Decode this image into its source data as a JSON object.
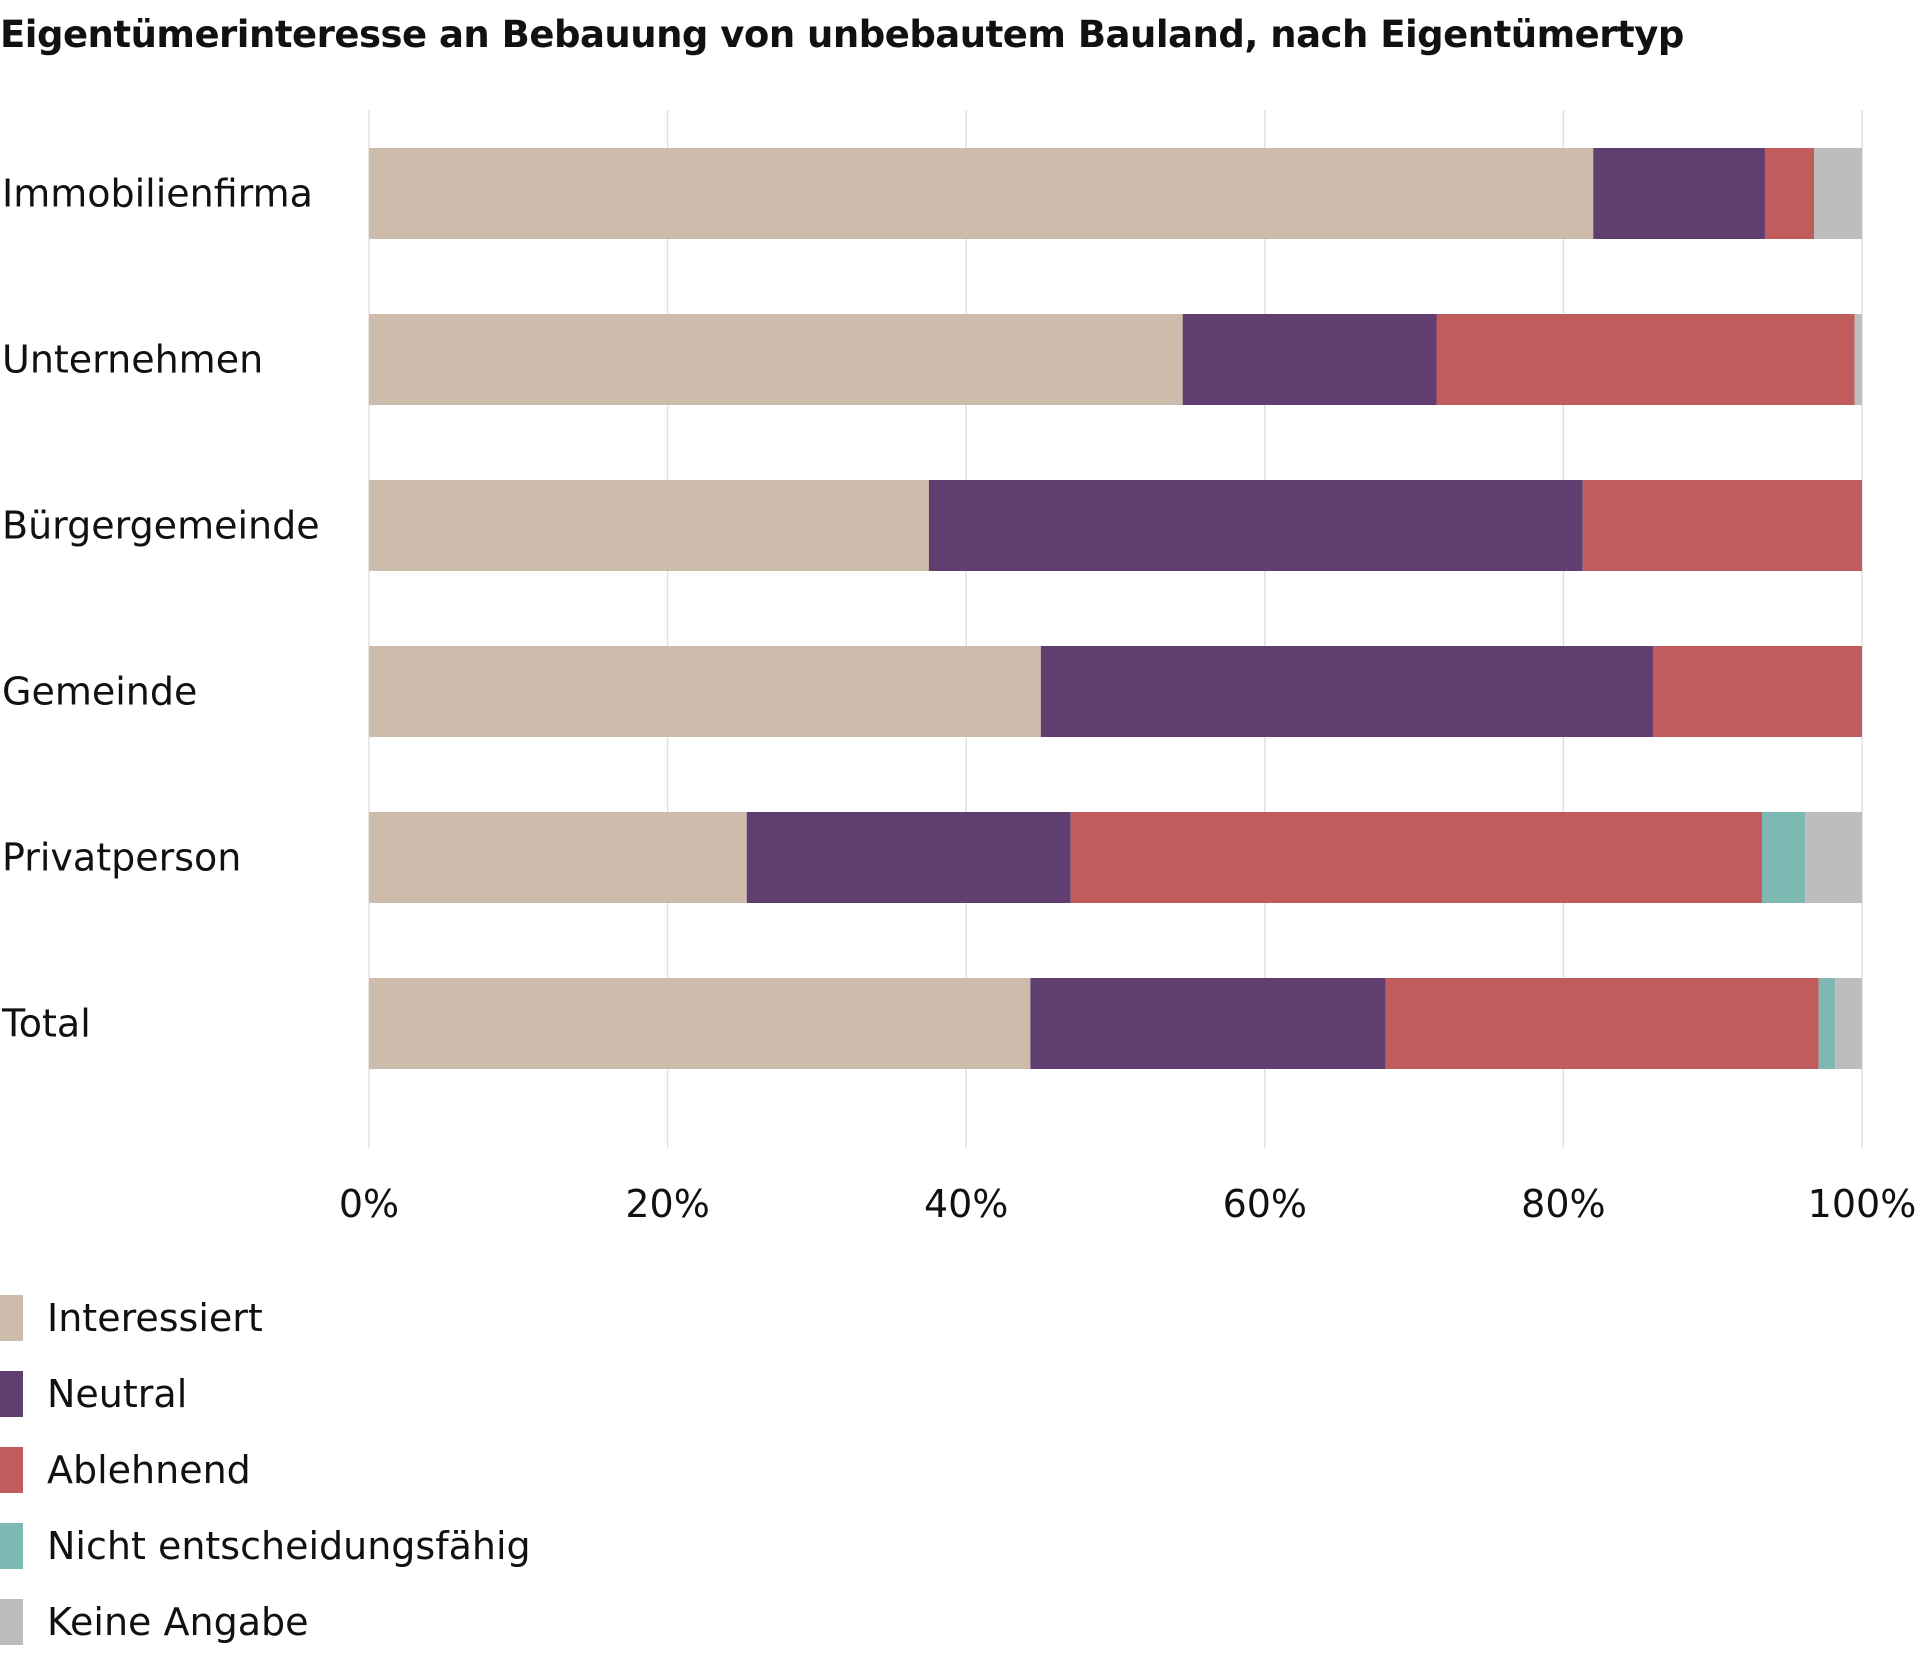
{
  "chart_data": {
    "type": "bar",
    "orientation": "horizontal",
    "stacked": true,
    "title": "Eigentümerinteresse an Bebauung von unbebautem Bauland, nach Eigentümertyp",
    "xlabel": "",
    "ylabel": "",
    "xlim": [
      0,
      100
    ],
    "x_ticks": [
      "0%",
      "20%",
      "40%",
      "60%",
      "80%",
      "100%"
    ],
    "grid": true,
    "legend_position": "bottom-left",
    "categories": [
      "Immobilienfirma",
      "Unternehmen",
      "Bürgergemeinde",
      "Gemeinde",
      "Privatperson",
      "Total"
    ],
    "series": [
      {
        "name": "Interessiert",
        "color": "#cdbcab",
        "values": [
          82,
          54.5,
          37.5,
          45,
          25.3,
          44.3
        ]
      },
      {
        "name": "Neutral",
        "color": "#603f70",
        "values": [
          11.5,
          17,
          43.8,
          41,
          21.7,
          23.8
        ]
      },
      {
        "name": "Ablehnend",
        "color": "#c05c5c",
        "values": [
          3.3,
          28,
          18.7,
          14,
          46.3,
          29
        ]
      },
      {
        "name": "Nicht entscheidungsfähig",
        "color": "#7db8b2",
        "values": [
          0,
          0,
          0,
          0,
          2.9,
          1.1
        ]
      },
      {
        "name": "Keine Angabe",
        "color": "#bdbdbd",
        "values": [
          3.2,
          0.5,
          0,
          0,
          3.8,
          1.8
        ]
      }
    ]
  }
}
